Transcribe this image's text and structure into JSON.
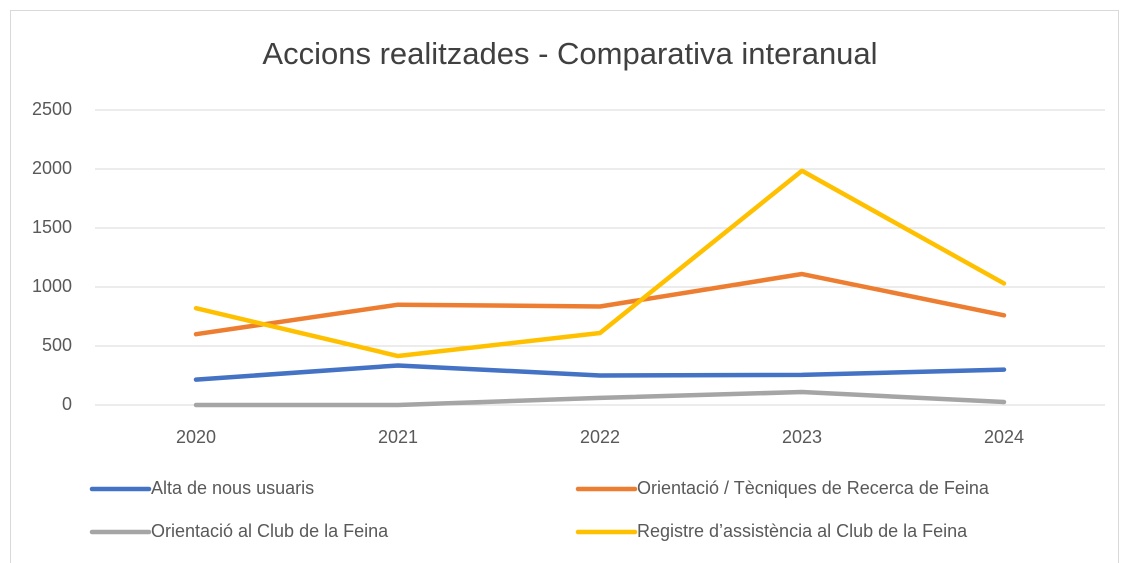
{
  "chart_data": {
    "type": "line",
    "title": "Accions realitzades - Comparativa interanual",
    "categories": [
      "2020",
      "2021",
      "2022",
      "2023",
      "2024"
    ],
    "series": [
      {
        "name": "Alta de nous usuaris",
        "color": "#4472c4",
        "values": [
          215,
          335,
          250,
          255,
          300
        ]
      },
      {
        "name": "Orientació / Tècniques de Recerca de Feina",
        "color": "#ed7d31",
        "values": [
          600,
          850,
          835,
          1110,
          760
        ]
      },
      {
        "name": "Orientació al Club de la Feina",
        "color": "#a5a5a5",
        "values": [
          0,
          0,
          60,
          110,
          25
        ]
      },
      {
        "name": "Registre d’assistència al Club de la Feina",
        "color": "#ffc000",
        "values": [
          820,
          415,
          610,
          1985,
          1030
        ]
      }
    ],
    "ylim": [
      0,
      2500
    ],
    "yticks": [
      0,
      500,
      1000,
      1500,
      2000,
      2500
    ],
    "grid": true,
    "legend": "bottom"
  }
}
